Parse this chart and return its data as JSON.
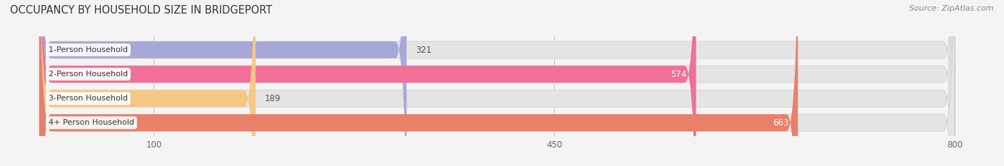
{
  "title": "OCCUPANCY BY HOUSEHOLD SIZE IN BRIDGEPORT",
  "source": "Source: ZipAtlas.com",
  "categories": [
    "1-Person Household",
    "2-Person Household",
    "3-Person Household",
    "4+ Person Household"
  ],
  "values": [
    321,
    574,
    189,
    663
  ],
  "bar_colors": [
    "#a8a8d8",
    "#f07098",
    "#f5c888",
    "#e8806a"
  ],
  "label_colors": [
    "#555555",
    "#ffffff",
    "#555555",
    "#ffffff"
  ],
  "value_outside_color": "#555555",
  "xlim": [
    -30,
    830
  ],
  "data_max": 800,
  "xticks": [
    100,
    450,
    800
  ],
  "bar_bg_color": "#e4e4e4",
  "background_color": "#f4f4f4",
  "title_fontsize": 10.5,
  "source_fontsize": 8,
  "label_fontsize": 8,
  "value_fontsize": 8.5,
  "bar_height": 0.7,
  "label_box_color": "#ffffff"
}
